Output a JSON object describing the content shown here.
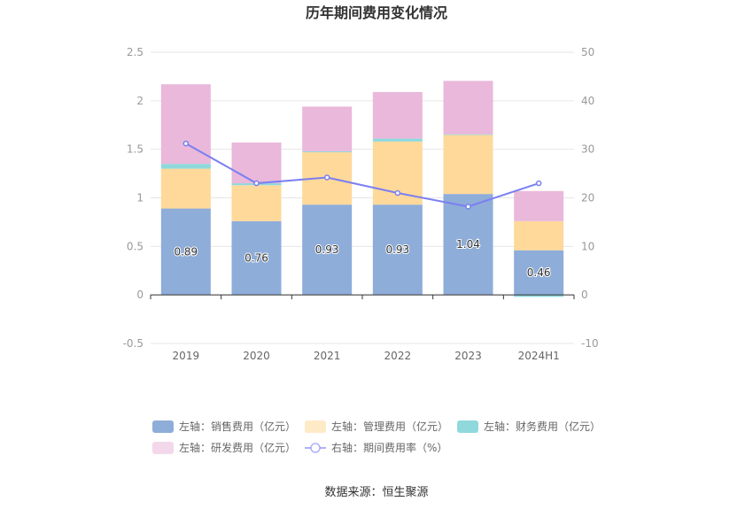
{
  "title": "历年期间费用变化情况",
  "source": "数据来源：恒生聚源",
  "chart_data": {
    "type": "bar",
    "stacked": true,
    "categories": [
      "2019",
      "2020",
      "2021",
      "2022",
      "2023",
      "2024H1"
    ],
    "left_axis": {
      "min": -0.5,
      "max": 2.5,
      "ticks": [
        "-0.5",
        "0",
        "0.5",
        "1",
        "1.5",
        "2",
        "2.5"
      ]
    },
    "right_axis": {
      "min": -10,
      "max": 50,
      "ticks": [
        "-10",
        "0",
        "10",
        "20",
        "30",
        "40",
        "50"
      ]
    },
    "series": [
      {
        "name": "左轴：销售费用（亿元）",
        "type": "bar",
        "axis": "left",
        "color": "#8eadd9",
        "values": [
          0.89,
          0.76,
          0.93,
          0.93,
          1.04,
          0.46
        ],
        "labels": [
          "0.89",
          "0.76",
          "0.93",
          "0.93",
          "1.04",
          "0.46"
        ]
      },
      {
        "name": "左轴：管理费用（亿元）",
        "type": "bar",
        "axis": "left",
        "color": "#ffd99a",
        "values": [
          0.41,
          0.37,
          0.54,
          0.65,
          0.61,
          0.3
        ]
      },
      {
        "name": "左轴：财务费用（亿元）",
        "type": "bar",
        "axis": "left",
        "color": "#8fd8dc",
        "values": [
          0.05,
          0.02,
          0.01,
          0.03,
          0.005,
          -0.02
        ]
      },
      {
        "name": "左轴：研发费用（亿元）",
        "type": "bar",
        "axis": "left",
        "color": "#e9b8da",
        "values": [
          0.82,
          0.42,
          0.46,
          0.48,
          0.55,
          0.31
        ]
      },
      {
        "name": "右轴：期间费用率（%）",
        "type": "line",
        "axis": "right",
        "color": "#7b7ff0",
        "values": [
          31.2,
          23.0,
          24.2,
          21.0,
          18.2,
          23.0
        ]
      }
    ],
    "grid": true,
    "legend_position": "bottom"
  }
}
